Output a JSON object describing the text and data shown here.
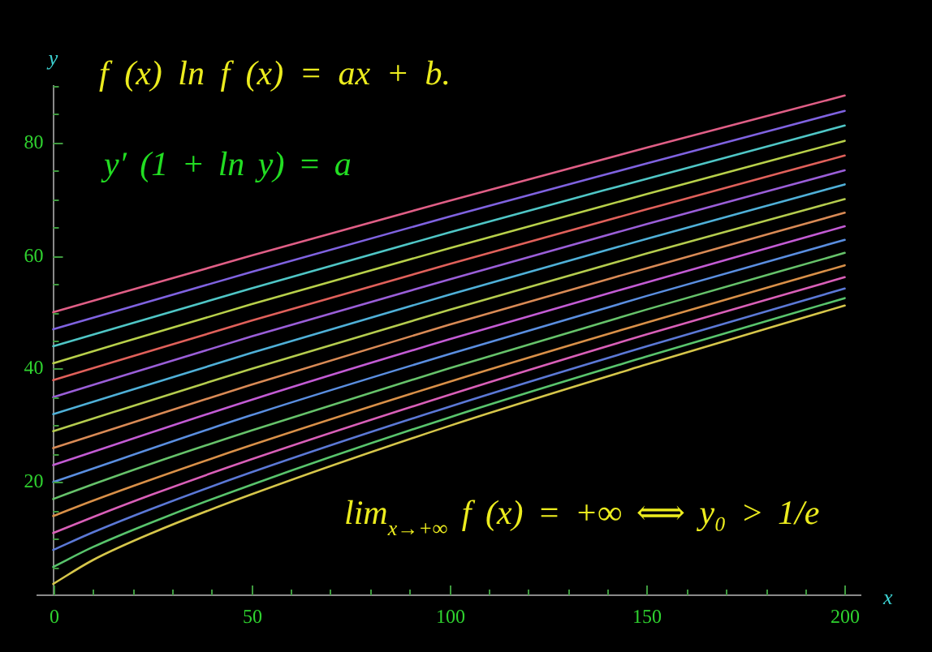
{
  "chart_data": {
    "type": "line",
    "xlabel": "x",
    "ylabel": "y",
    "annotations": [
      "f (x) ln f (x) = ax + b.",
      "y′ (1 + ln y) = a",
      "lim$_{x→+∞}$ f (x) = +∞ ⟺ y₀ > 1/e"
    ],
    "xlim": [
      -4,
      204
    ],
    "ylim": [
      0,
      90
    ],
    "xticks": [
      0,
      {
        "value": 10,
        "label": null
      },
      {
        "value": 20,
        "label": null
      },
      {
        "value": 30,
        "label": null
      },
      {
        "value": 40,
        "label": null
      },
      50,
      {
        "value": 60,
        "label": null
      },
      {
        "value": 70,
        "label": null
      },
      {
        "value": 80,
        "label": null
      },
      {
        "value": 90,
        "label": null
      },
      100,
      {
        "value": 110,
        "label": null
      },
      {
        "value": 120,
        "label": null
      },
      {
        "value": 130,
        "label": null
      },
      {
        "value": 140,
        "label": null
      },
      150,
      {
        "value": 160,
        "label": null
      },
      {
        "value": 170,
        "label": null
      },
      {
        "value": 180,
        "label": null
      },
      {
        "value": 190,
        "label": null
      },
      200
    ],
    "yticks": [
      {
        "value": 5,
        "label": null
      },
      {
        "value": 10,
        "label": null
      },
      {
        "value": 15,
        "label": null
      },
      20,
      {
        "value": 25,
        "label": null
      },
      {
        "value": 30,
        "label": null
      },
      {
        "value": 35,
        "label": null
      },
      40,
      {
        "value": 45,
        "label": null
      },
      {
        "value": 50,
        "label": null
      },
      {
        "value": 55,
        "label": null
      },
      60,
      {
        "value": 65,
        "label": null
      },
      {
        "value": 70,
        "label": null
      },
      {
        "value": 75,
        "label": null
      },
      80,
      {
        "value": 85,
        "label": null
      },
      {
        "value": 90,
        "label": null
      }
    ],
    "marker": "none",
    "series": [
      {
        "color": "#d6c64a",
        "x": [
          0,
          10,
          25,
          50,
          100,
          150,
          200
        ],
        "values": [
          2,
          6.2,
          11.0,
          17.8,
          29.9,
          40.8,
          51.2
        ]
      },
      {
        "color": "#58c46c",
        "x": [
          0,
          10,
          25,
          50,
          100,
          150,
          200
        ],
        "values": [
          5,
          8.5,
          12.9,
          19.5,
          31.4,
          42.2,
          52.5
        ]
      },
      {
        "color": "#5b78d6",
        "x": [
          0,
          10,
          25,
          50,
          100,
          150,
          200
        ],
        "values": [
          8,
          11.1,
          15.3,
          21.7,
          33.3,
          44.0,
          54.2
        ]
      },
      {
        "color": "#d95fb8",
        "x": [
          0,
          10,
          25,
          50,
          100,
          150,
          200
        ],
        "values": [
          11,
          13.8,
          17.8,
          24.0,
          35.4,
          46.1,
          56.2
        ]
      },
      {
        "color": "#d99048",
        "x": [
          0,
          10,
          25,
          50,
          100,
          150,
          200
        ],
        "values": [
          14,
          16.7,
          20.5,
          26.5,
          37.7,
          48.2,
          58.3
        ]
      },
      {
        "color": "#66c26a",
        "x": [
          0,
          10,
          25,
          50,
          100,
          150,
          200
        ],
        "values": [
          17,
          19.6,
          23.3,
          29.1,
          40.1,
          50.5,
          60.5
        ]
      },
      {
        "color": "#5a8ee0",
        "x": [
          0,
          50,
          100,
          150,
          200
        ],
        "values": [
          20,
          31.8,
          42.6,
          52.9,
          62.8
        ]
      },
      {
        "color": "#c35bd4",
        "x": [
          0,
          50,
          100,
          150,
          200
        ],
        "values": [
          23,
          34.5,
          45.2,
          55.3,
          65.2
        ]
      },
      {
        "color": "#d98a55",
        "x": [
          0,
          50,
          100,
          150,
          200
        ],
        "values": [
          26,
          37.2,
          47.8,
          57.8,
          67.6
        ]
      },
      {
        "color": "#b5cc4e",
        "x": [
          0,
          50,
          100,
          150,
          200
        ],
        "values": [
          29,
          40.0,
          50.4,
          60.4,
          70.0
        ]
      },
      {
        "color": "#4fb0d8",
        "x": [
          0,
          50,
          100,
          150,
          200
        ],
        "values": [
          32,
          42.8,
          53.1,
          63.0,
          72.6
        ]
      },
      {
        "color": "#9a5ed8",
        "x": [
          0,
          50,
          100,
          150,
          200
        ],
        "values": [
          35,
          45.7,
          55.8,
          65.6,
          75.1
        ]
      },
      {
        "color": "#e0605a",
        "x": [
          0,
          50,
          100,
          150,
          200
        ],
        "values": [
          38,
          48.5,
          58.5,
          68.2,
          77.7
        ]
      },
      {
        "color": "#b8d04a",
        "x": [
          0,
          50,
          100,
          150,
          200
        ],
        "values": [
          41,
          51.4,
          61.3,
          70.9,
          80.3
        ]
      },
      {
        "color": "#4fc6c6",
        "x": [
          0,
          50,
          100,
          150,
          200
        ],
        "values": [
          44,
          54.2,
          64.1,
          73.6,
          83.0
        ]
      },
      {
        "color": "#7f62e0",
        "x": [
          0,
          50,
          100,
          150,
          200
        ],
        "values": [
          47,
          57.1,
          66.9,
          76.3,
          85.6
        ]
      },
      {
        "color": "#e05e86",
        "x": [
          0,
          50,
          100,
          150,
          200
        ],
        "values": [
          50,
          60.0,
          69.7,
          79.1,
          88.3
        ]
      }
    ]
  }
}
